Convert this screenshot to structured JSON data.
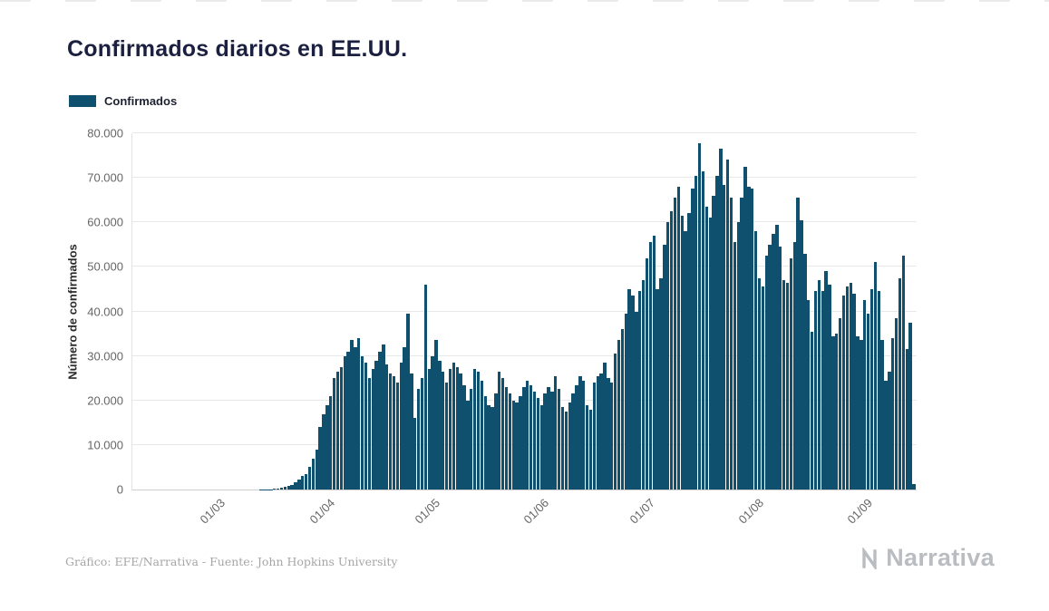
{
  "title": "Confirmados diarios en EE.UU.",
  "legend": {
    "label": "Confirmados"
  },
  "footer": {
    "source": "Gráfico: EFE/Narrativa - Fuente: John Hopkins University"
  },
  "branding": {
    "logo_text": "Narrativa",
    "logo_icon": "narrativa-n-mark",
    "logo_color": "#b9bcc0"
  },
  "chart_data": {
    "type": "bar",
    "title": "Confirmados diarios en EE.UU.",
    "series_name": "Confirmados",
    "xlabel": "",
    "ylabel": "Número de confirmados",
    "ylim": [
      0,
      80000
    ],
    "grid": "horizontal",
    "legend_position": "top-left",
    "color": "#0e506e",
    "x_unit": "day",
    "x_tick_format": "dd/mm",
    "y_ticks": [
      {
        "value": 0,
        "label": "0"
      },
      {
        "value": 10000,
        "label": "10.000"
      },
      {
        "value": 20000,
        "label": "20.000"
      },
      {
        "value": 30000,
        "label": "30.000"
      },
      {
        "value": 40000,
        "label": "40.000"
      },
      {
        "value": 50000,
        "label": "50.000"
      },
      {
        "value": 60000,
        "label": "60.000"
      },
      {
        "value": 70000,
        "label": "70.000"
      },
      {
        "value": 80000,
        "label": "80.000"
      }
    ],
    "x_ticks": [
      {
        "label": "01/03",
        "index": 24
      },
      {
        "label": "01/04",
        "index": 55
      },
      {
        "label": "01/05",
        "index": 85
      },
      {
        "label": "01/06",
        "index": 116
      },
      {
        "label": "01/07",
        "index": 146
      },
      {
        "label": "01/08",
        "index": 177
      },
      {
        "label": "01/09",
        "index": 208
      }
    ],
    "values": [
      0,
      0,
      0,
      0,
      0,
      0,
      0,
      0,
      0,
      0,
      0,
      0,
      0,
      0,
      0,
      0,
      0,
      0,
      0,
      0,
      0,
      0,
      0,
      0,
      0,
      0,
      0,
      0,
      0,
      1,
      1,
      2,
      3,
      5,
      8,
      12,
      20,
      30,
      50,
      80,
      120,
      200,
      350,
      550,
      800,
      1100,
      1600,
      2200,
      3000,
      3500,
      5000,
      7000,
      9000,
      14000,
      17000,
      19000,
      21000,
      25000,
      26500,
      27500,
      30000,
      31000,
      33500,
      32000,
      34000,
      30000,
      28500,
      25000,
      27000,
      29000,
      31000,
      32500,
      28000,
      26000,
      25500,
      24000,
      28500,
      32000,
      39500,
      26000,
      16000,
      22500,
      25000,
      46000,
      27000,
      30000,
      33500,
      29000,
      26500,
      24000,
      27000,
      28500,
      27500,
      26000,
      23500,
      20000,
      22500,
      27000,
      26500,
      24500,
      21000,
      19000,
      18500,
      21500,
      26500,
      25000,
      23000,
      21500,
      20000,
      19500,
      21000,
      23000,
      24500,
      23500,
      22000,
      20500,
      19000,
      21500,
      23000,
      22000,
      25500,
      22500,
      18500,
      17500,
      19500,
      21500,
      23500,
      25500,
      24500,
      19000,
      18000,
      24000,
      25500,
      26000,
      28500,
      25000,
      24000,
      30500,
      33500,
      36000,
      39500,
      45000,
      43500,
      40000,
      44500,
      47000,
      52000,
      55500,
      57000,
      45000,
      47500,
      55000,
      60000,
      62500,
      65500,
      68000,
      61500,
      58000,
      62000,
      67500,
      70500,
      77800,
      71500,
      63500,
      61000,
      66000,
      70500,
      76500,
      68500,
      74000,
      65500,
      55500,
      60000,
      65500,
      72500,
      68000,
      67500,
      58000,
      47500,
      45500,
      52500,
      55000,
      57500,
      59500,
      54500,
      47000,
      46500,
      52000,
      55500,
      65500,
      60500,
      53000,
      42500,
      35500,
      44500,
      47000,
      44500,
      49000,
      46000,
      34500,
      35000,
      38500,
      43500,
      45500,
      46500,
      44000,
      34500,
      33500,
      42500,
      39500,
      45000,
      51000,
      44500,
      33500,
      24500,
      26500,
      34000,
      38500,
      47500,
      52500,
      31500,
      37500,
      1200
    ]
  }
}
